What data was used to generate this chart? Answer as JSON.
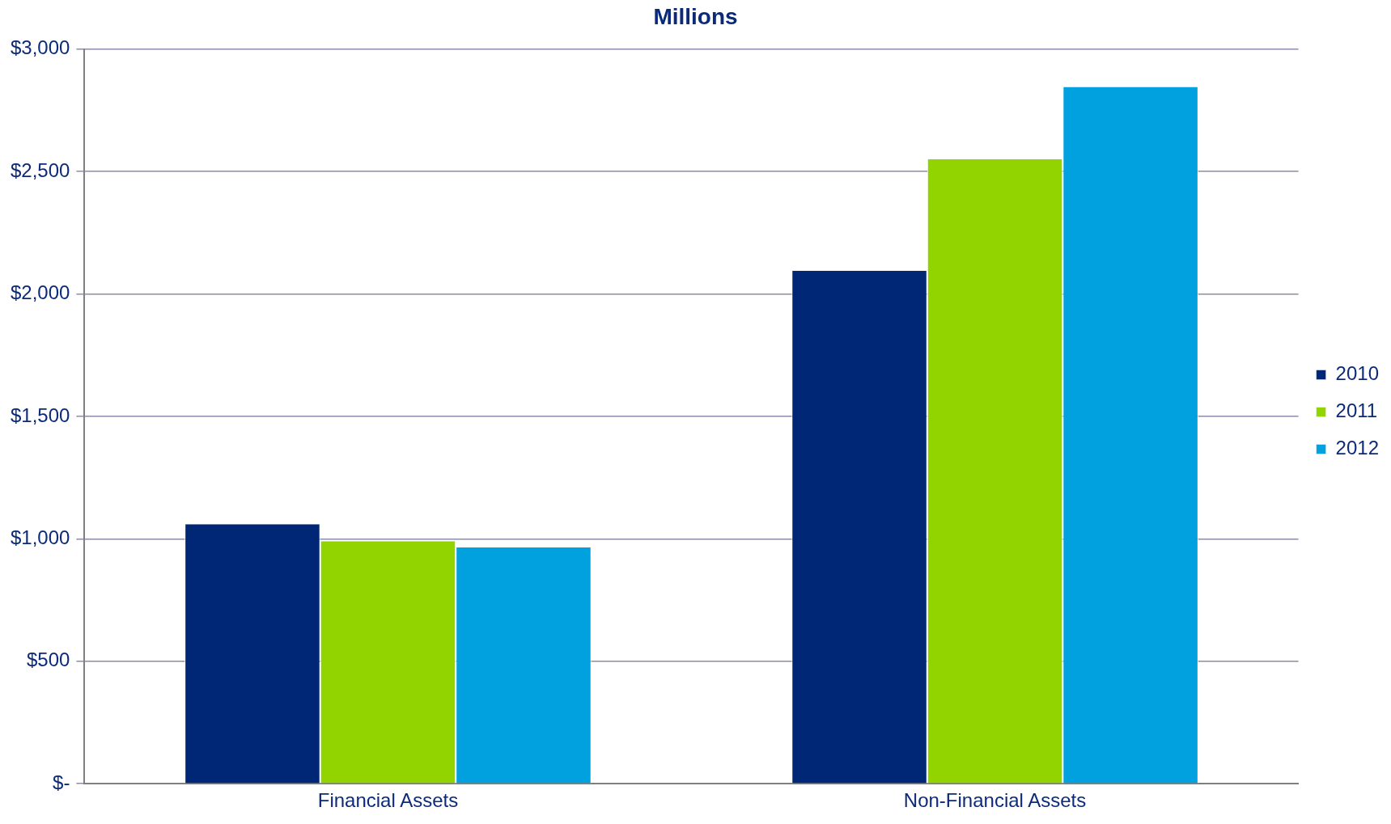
{
  "chart_data": {
    "type": "bar",
    "title": "Millions",
    "categories": [
      "Financial Assets",
      "Non-Financial Assets"
    ],
    "series": [
      {
        "name": "2010",
        "color": "#002776",
        "values": [
          1060,
          2095
        ]
      },
      {
        "name": "2011",
        "color": "#92d400",
        "values": [
          990,
          2550
        ]
      },
      {
        "name": "2012",
        "color": "#00a1de",
        "values": [
          965,
          2845
        ]
      }
    ],
    "ylim": [
      0,
      3000
    ],
    "yticks": [
      {
        "value": 0,
        "label": "$-"
      },
      {
        "value": 500,
        "label": "$500"
      },
      {
        "value": 1000,
        "label": "$1,000"
      },
      {
        "value": 1500,
        "label": "$1,500"
      },
      {
        "value": 2000,
        "label": "$2,000"
      },
      {
        "value": 2500,
        "label": "$2,500"
      },
      {
        "value": 3000,
        "label": "$3,000"
      }
    ],
    "grid": "y",
    "legend": "right"
  }
}
